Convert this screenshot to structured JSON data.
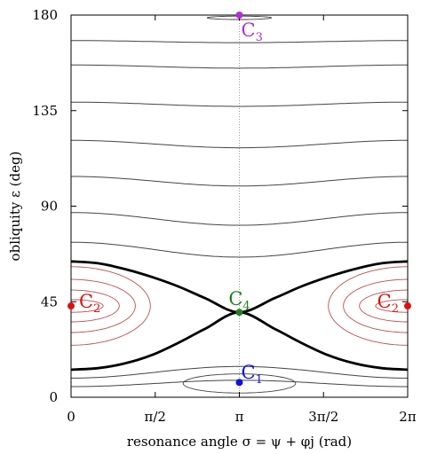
{
  "chart_data": {
    "type": "line",
    "title": "",
    "xlabel": "resonance angle σ = ψ + φj (rad)",
    "ylabel": "obliquity ε (deg)",
    "xlim": [
      0,
      6.2832
    ],
    "ylim": [
      0,
      180
    ],
    "x_ticks": [
      {
        "value": 0,
        "label": "0"
      },
      {
        "value": 1.5708,
        "label": "π/2"
      },
      {
        "value": 3.1416,
        "label": "π"
      },
      {
        "value": 4.7124,
        "label": "3π/2"
      },
      {
        "value": 6.2832,
        "label": "2π"
      }
    ],
    "y_ticks": [
      {
        "value": 0,
        "label": "0"
      },
      {
        "value": 45,
        "label": "45"
      },
      {
        "value": 90,
        "label": "90"
      },
      {
        "value": 135,
        "label": "135"
      },
      {
        "value": 180,
        "label": "180"
      }
    ],
    "grid": false,
    "vertical_reference": {
      "x": 3.1416,
      "style": "dotted",
      "color": "#999999"
    },
    "separatrix": {
      "color": "#000000",
      "upper": [
        [
          0,
          64
        ],
        [
          0.5,
          63.1
        ],
        [
          1.0,
          60.4
        ],
        [
          1.5,
          56.7
        ],
        [
          2.0,
          52.2
        ],
        [
          2.5,
          46.7
        ],
        [
          3.1416,
          40
        ],
        [
          3.8,
          46.7
        ],
        [
          4.3,
          52.2
        ],
        [
          4.8,
          56.7
        ],
        [
          5.3,
          60.4
        ],
        [
          5.8,
          63.1
        ],
        [
          6.2832,
          64
        ]
      ],
      "lower": [
        [
          0,
          13
        ],
        [
          0.5,
          13.7
        ],
        [
          1.0,
          15.9
        ],
        [
          1.5,
          19.8
        ],
        [
          2.0,
          25.6
        ],
        [
          2.5,
          32.2
        ],
        [
          3.1416,
          40
        ],
        [
          3.8,
          32.2
        ],
        [
          4.3,
          25.6
        ],
        [
          4.8,
          19.8
        ],
        [
          5.3,
          15.9
        ],
        [
          5.8,
          13.7
        ],
        [
          6.2832,
          13
        ]
      ]
    },
    "circulating_curves": {
      "color": "#444444",
      "curves": [
        {
          "ends": 168.0,
          "mid": 167.0
        },
        {
          "ends": 156.5,
          "mid": 155.0
        },
        {
          "ends": 139.0,
          "mid": 137.0
        },
        {
          "ends": 121.0,
          "mid": 117.5
        },
        {
          "ends": 104.0,
          "mid": 99.5
        },
        {
          "ends": 87.0,
          "mid": 81.0
        },
        {
          "ends": 73.0,
          "mid": 66.0
        },
        {
          "ends": 9.0,
          "mid": 14.5
        },
        {
          "ends": 5.0,
          "mid": 8.0
        }
      ]
    },
    "libration_c2": {
      "color": "#c0504d",
      "center": [
        0,
        43
      ],
      "curves": [
        {
          "half_width": 0.6,
          "half_height": 3
        },
        {
          "half_width": 0.9,
          "half_height": 7.5
        },
        {
          "half_width": 1.2,
          "half_height": 12.5
        },
        {
          "half_width": 1.48,
          "half_height": 18.5
        }
      ]
    },
    "libration_c1": {
      "color": "#444444",
      "curves": [
        {
          "center": [
            3.1416,
            6.5
          ],
          "half_width": 1.05,
          "half_height": 4.5
        }
      ]
    },
    "libration_c3": {
      "color": "#444444",
      "curves": [
        {
          "center": [
            3.1416,
            178.7
          ],
          "half_width": 0.6,
          "half_height": 0.8
        }
      ]
    },
    "points": [
      {
        "name": "C",
        "sub": "1",
        "x": 3.1416,
        "y": 7,
        "color": "#1010e0",
        "label_pos": "above-right"
      },
      {
        "name": "C",
        "sub": "2",
        "x": 0,
        "y": 43,
        "color": "#e01010",
        "label_pos": "right"
      },
      {
        "name": "C",
        "sub": "2",
        "x": 6.2832,
        "y": 43,
        "color": "#e01010",
        "label_pos": "left"
      },
      {
        "name": "C",
        "sub": "3",
        "x": 3.1416,
        "y": 180,
        "color": "#b030d0",
        "label_pos": "below-right"
      },
      {
        "name": "C",
        "sub": "4",
        "x": 3.1416,
        "y": 40,
        "color": "#208020",
        "label_pos": "above"
      }
    ]
  }
}
